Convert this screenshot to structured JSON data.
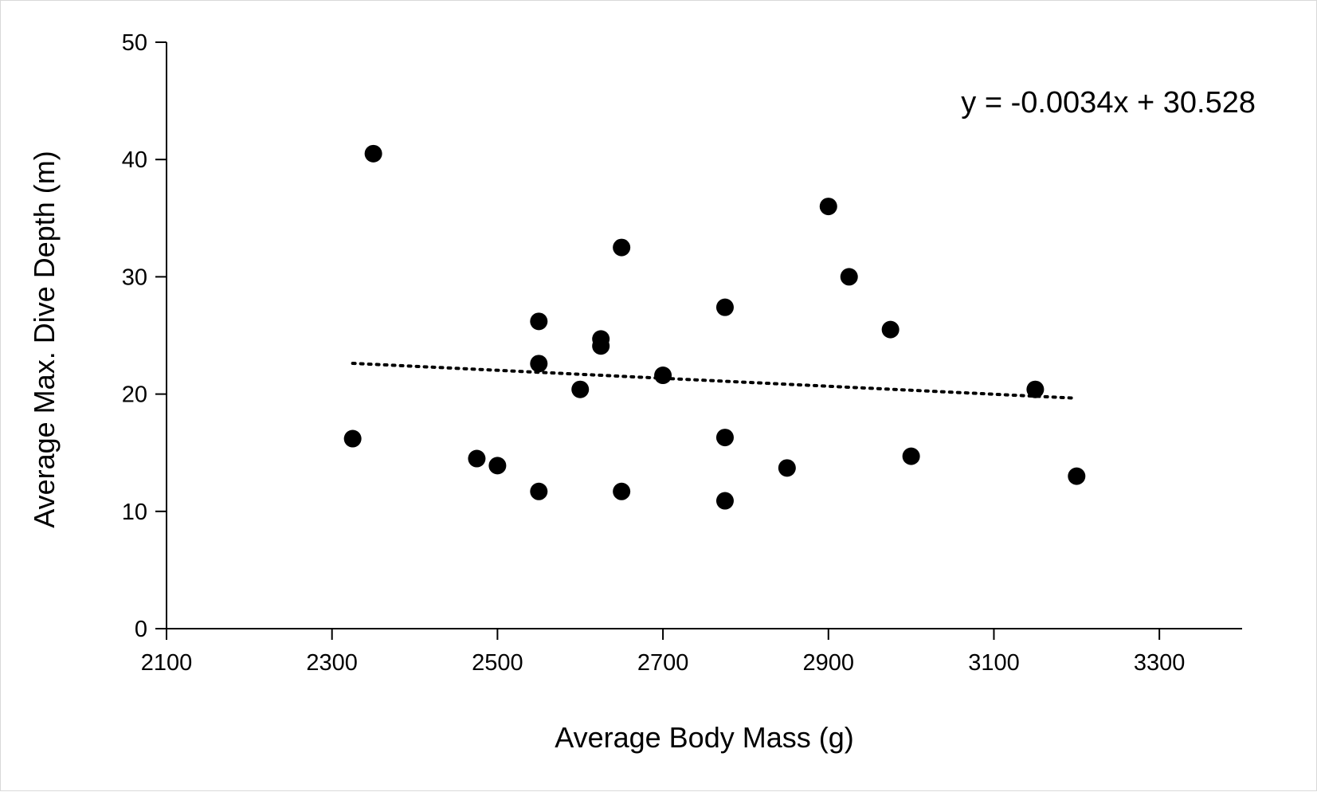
{
  "chart_data": {
    "type": "scatter",
    "title": "",
    "xlabel": "Average Body Mass (g)",
    "ylabel": "Average Max. Dive Depth (m)",
    "xlim": [
      2100,
      3400
    ],
    "ylim": [
      0,
      50
    ],
    "x_ticks": [
      2100,
      2300,
      2500,
      2700,
      2900,
      3100,
      3300
    ],
    "y_ticks": [
      0,
      10,
      20,
      30,
      40,
      50
    ],
    "grid": false,
    "legend": "none",
    "point_color": "#000000",
    "series": [
      {
        "points": [
          {
            "x": 2325,
            "y": 16.2
          },
          {
            "x": 2350,
            "y": 40.5
          },
          {
            "x": 2475,
            "y": 14.5
          },
          {
            "x": 2500,
            "y": 13.9
          },
          {
            "x": 2550,
            "y": 26.2
          },
          {
            "x": 2550,
            "y": 22.6
          },
          {
            "x": 2550,
            "y": 11.7
          },
          {
            "x": 2600,
            "y": 20.4
          },
          {
            "x": 2625,
            "y": 24.7
          },
          {
            "x": 2625,
            "y": 24.1
          },
          {
            "x": 2650,
            "y": 32.5
          },
          {
            "x": 2650,
            "y": 11.7
          },
          {
            "x": 2700,
            "y": 21.6
          },
          {
            "x": 2775,
            "y": 27.4
          },
          {
            "x": 2775,
            "y": 16.3
          },
          {
            "x": 2775,
            "y": 10.9
          },
          {
            "x": 2850,
            "y": 13.7
          },
          {
            "x": 2900,
            "y": 36.0
          },
          {
            "x": 2925,
            "y": 30.0
          },
          {
            "x": 2975,
            "y": 25.5
          },
          {
            "x": 3000,
            "y": 14.7
          },
          {
            "x": 3150,
            "y": 20.4
          },
          {
            "x": 3200,
            "y": 13.0
          }
        ]
      }
    ],
    "trendline": {
      "style": "dotted",
      "slope": -0.0034,
      "intercept": 30.528,
      "x_range": [
        2325,
        3200
      ],
      "equation": "y = -0.0034x + 30.528"
    }
  }
}
